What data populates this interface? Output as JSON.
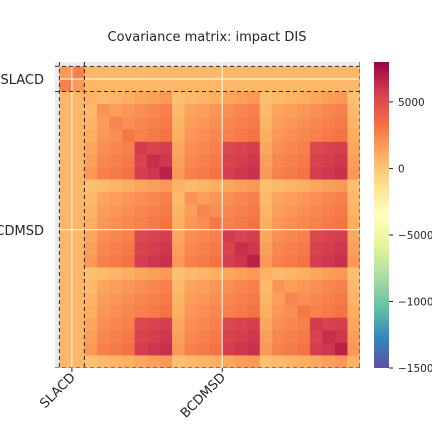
{
  "chart_data": {
    "type": "heatmap",
    "title": "Covariance matrix: impact DIS",
    "xlabel": "",
    "ylabel": "",
    "x_tick_labels": [
      "SLACD",
      "BCDMSD"
    ],
    "y_tick_labels": [
      "SLACD",
      "BCDMSD"
    ],
    "blocks": [
      {
        "name": "SLACD",
        "size": 2
      },
      {
        "name": "BCDMSD",
        "size": 22
      }
    ],
    "colormap": "Spectral_r",
    "colorbar": {
      "range": [
        -15000,
        8000
      ],
      "ticks": [
        5000,
        0,
        -5000,
        -10000,
        -15000
      ],
      "tick_labels": [
        "5000",
        "0",
        "−5000",
        "−10000",
        "−15000"
      ]
    },
    "grid": true,
    "block_separators": "dashed",
    "typical_values": {
      "SLACD_block": [
        1000,
        3000
      ],
      "BCDMSD_block": [
        0,
        5500
      ],
      "off_diagonal_SLACD_BCDMSD": 0
    }
  }
}
